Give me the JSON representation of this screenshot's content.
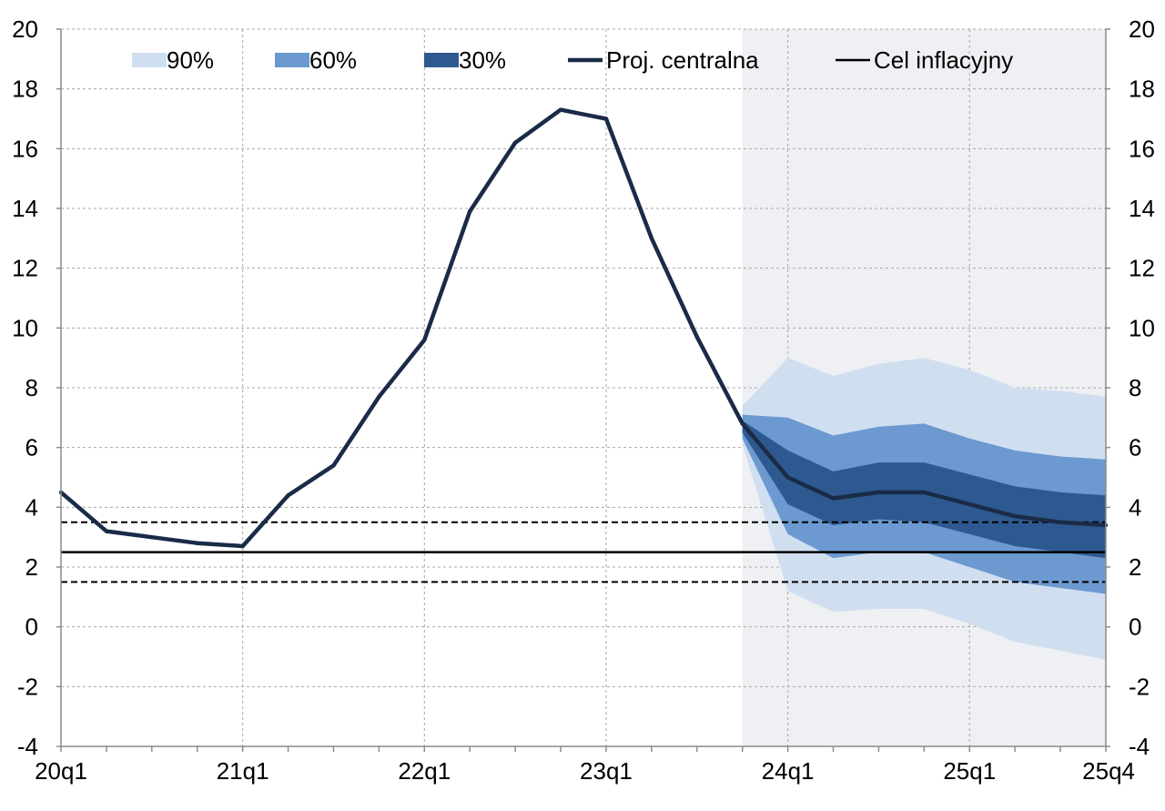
{
  "chart_data": {
    "type": "fan",
    "title": "",
    "xlabel": "",
    "ylabel": "",
    "ylim": [
      -4,
      20
    ],
    "y_ticks": [
      -4,
      -2,
      0,
      2,
      4,
      6,
      8,
      10,
      12,
      14,
      16,
      18,
      20
    ],
    "y_tick_labels": [
      "-4",
      "-2",
      "0",
      "2",
      "4",
      "6",
      "8",
      "10",
      "12",
      "14",
      "16",
      "18",
      "20"
    ],
    "x": [
      "20q1",
      "20q2",
      "20q3",
      "20q4",
      "21q1",
      "21q2",
      "21q3",
      "21q4",
      "22q1",
      "22q2",
      "22q3",
      "22q4",
      "23q1",
      "23q2",
      "23q3",
      "23q4",
      "24q1",
      "24q2",
      "24q3",
      "24q4",
      "25q1",
      "25q2",
      "25q3",
      "25q4"
    ],
    "x_tick_labels": [
      {
        "index": 0,
        "label": "20q1"
      },
      {
        "index": 4,
        "label": "21q1"
      },
      {
        "index": 8,
        "label": "22q1"
      },
      {
        "index": 12,
        "label": "23q1"
      },
      {
        "index": 16,
        "label": "24q1"
      },
      {
        "index": 20,
        "label": "25q1"
      },
      {
        "index": 23,
        "label": "25q4"
      }
    ],
    "projection_start_index": 15,
    "central_projection": {
      "name": "Proj. centralna",
      "values": [
        4.5,
        3.2,
        3.0,
        2.8,
        2.7,
        4.4,
        5.4,
        7.7,
        9.6,
        13.9,
        16.2,
        17.3,
        17.0,
        13.0,
        9.7,
        6.8,
        5.0,
        4.3,
        4.5,
        4.5,
        4.1,
        3.7,
        3.5,
        3.4
      ]
    },
    "fan_bands": {
      "start_index": 15,
      "band_90": {
        "name": "90%",
        "lower": [
          6.1,
          1.2,
          0.5,
          0.6,
          0.6,
          0.1,
          -0.5,
          -0.8,
          -1.1
        ],
        "upper": [
          7.4,
          9.0,
          8.4,
          8.8,
          9.0,
          8.6,
          8.0,
          7.9,
          7.7
        ]
      },
      "band_60": {
        "name": "60%",
        "lower": [
          6.3,
          3.1,
          2.3,
          2.5,
          2.5,
          2.0,
          1.5,
          1.3,
          1.1
        ],
        "upper": [
          7.1,
          7.0,
          6.4,
          6.7,
          6.8,
          6.3,
          5.9,
          5.7,
          5.6
        ]
      },
      "band_30": {
        "name": "30%",
        "lower": [
          6.5,
          4.1,
          3.4,
          3.6,
          3.5,
          3.1,
          2.7,
          2.5,
          2.3
        ],
        "upper": [
          6.9,
          5.9,
          5.2,
          5.5,
          5.5,
          5.1,
          4.7,
          4.5,
          4.4
        ]
      }
    },
    "inflation_target": {
      "name": "Cel inflacyjny",
      "value": 2.5,
      "tolerance_upper": 3.5,
      "tolerance_lower": 1.5
    },
    "legend": {
      "placement": "top",
      "items": [
        {
          "label": "90%",
          "kind": "swatch",
          "color": "#d0dff0"
        },
        {
          "label": "60%",
          "kind": "swatch",
          "color": "#6c99d0"
        },
        {
          "label": "30%",
          "kind": "swatch",
          "color": "#2e5990"
        },
        {
          "label": "Proj. centralna",
          "kind": "line",
          "color": "#1a2b47"
        },
        {
          "label": "Cel inflacyjny",
          "kind": "line",
          "color": "#000000"
        }
      ]
    },
    "colors": {
      "band_90": "#d0dff0",
      "band_60": "#6c99d0",
      "band_30": "#2e5990",
      "central": "#1a2b47",
      "target": "#000000",
      "projection_background": "#eef0f3",
      "grid": "#a8a8a8"
    },
    "grid": true
  }
}
